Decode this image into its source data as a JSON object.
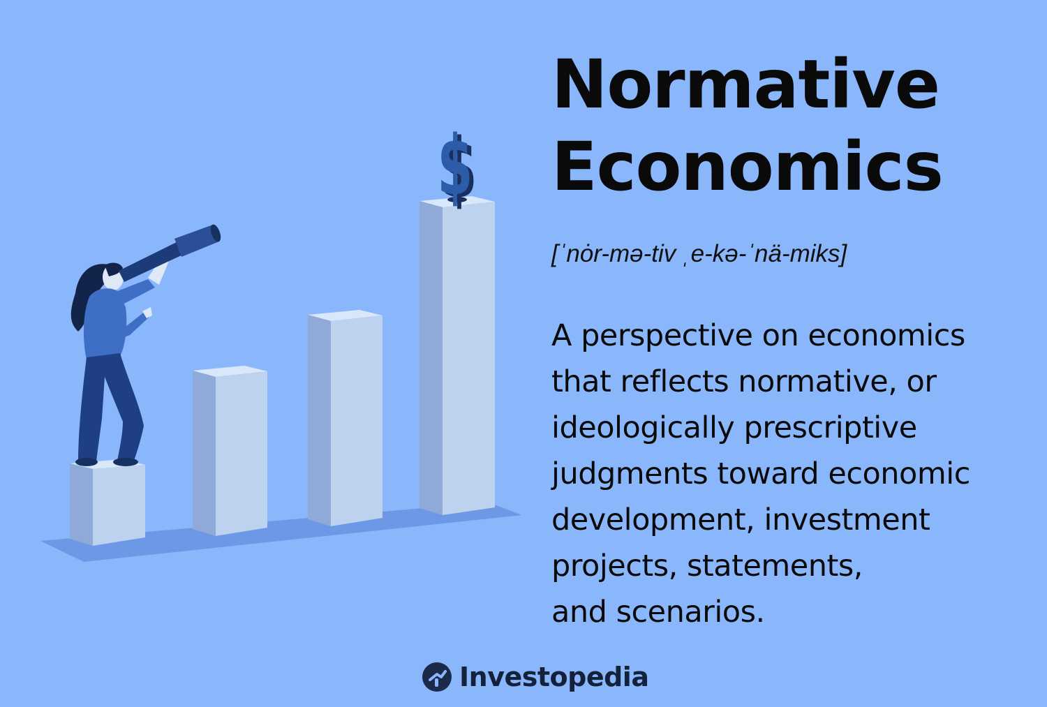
{
  "title": {
    "line1": "Normative",
    "line2": "Economics"
  },
  "pronunciation": "[ˈnȯr-mə-tiv ˌe-kə-ˈnä-miks]",
  "definition": {
    "lines": [
      "A perspective on economics",
      "that reflects normative, or",
      "ideologically prescriptive",
      "judgments toward economic",
      "development, investment",
      "projects, statements,",
      "and scenarios."
    ]
  },
  "illustration": {
    "dollar_sign": "$",
    "icons": [
      "woman-with-telescope-icon",
      "bar-columns-icon",
      "dollar-sign-icon"
    ],
    "colors": {
      "background": "#8ab7fb",
      "pillar_front": "#bcd2ef",
      "pillar_side": "#8fa9d8",
      "pillar_top": "#d9e7fa",
      "shadow": "#6d98e6",
      "navy": "#1d3b78"
    }
  },
  "brand": {
    "name": "Investopedia",
    "logo_icon": "investopedia-logo-icon"
  }
}
